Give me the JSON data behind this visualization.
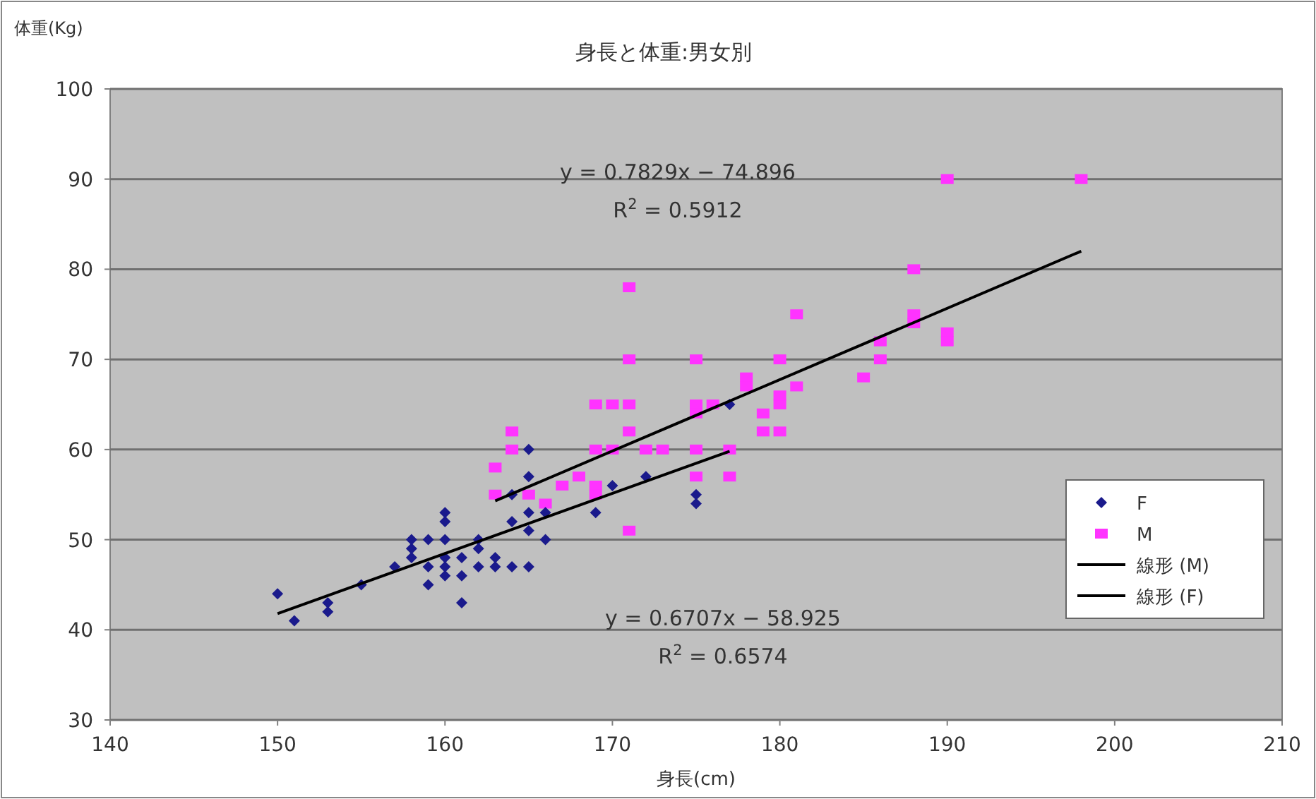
{
  "chart_data": {
    "type": "scatter",
    "title": "身長と体重:男女別",
    "xlabel": "身長(cm)",
    "ylabel": "体重(Kg)",
    "xlim": [
      140,
      210
    ],
    "xticks": [
      140,
      150,
      160,
      170,
      180,
      190,
      200,
      210
    ],
    "ylim": [
      30,
      100
    ],
    "yticks": [
      30,
      40,
      50,
      60,
      70,
      80,
      90,
      100
    ],
    "grid": "y",
    "legend": "right",
    "annotations": [
      "y = 0.7829x − 74.896",
      "R$^{2}$ = 0.5912",
      "y = 0.6707x − 58.925",
      "R$^{2}$ = 0.6574"
    ],
    "series": [
      {
        "name": "F",
        "color": "#1a1a8c",
        "marker": "diamond",
        "x": [
          150,
          151,
          153,
          153,
          155,
          157,
          158,
          158,
          158,
          159,
          159,
          159,
          160,
          160,
          160,
          160,
          160,
          160,
          161,
          161,
          161,
          162,
          162,
          162,
          163,
          163,
          164,
          164,
          164,
          165,
          165,
          165,
          165,
          165,
          166,
          166,
          169,
          170,
          172,
          175,
          175,
          177
        ],
        "values": [
          44,
          41,
          42,
          43,
          45,
          47,
          48,
          49,
          50,
          45,
          47,
          50,
          46,
          47,
          48,
          50,
          52,
          53,
          43,
          46,
          48,
          47,
          49,
          50,
          47,
          48,
          47,
          52,
          55,
          47,
          51,
          53,
          57,
          60,
          50,
          53,
          53,
          56,
          57,
          54,
          55,
          65
        ]
      },
      {
        "name": "M",
        "color": "#ff33ff",
        "marker": "square",
        "x": [
          163,
          163,
          164,
          164,
          165,
          166,
          167,
          168,
          169,
          169,
          169,
          169,
          170,
          170,
          171,
          171,
          171,
          171,
          171,
          172,
          173,
          175,
          175,
          175,
          175,
          175,
          176,
          177,
          177,
          178,
          178,
          179,
          179,
          180,
          180,
          180,
          180,
          181,
          181,
          185,
          186,
          186,
          188,
          188,
          188,
          190,
          190,
          190,
          198
        ],
        "values": [
          55,
          58,
          60,
          62,
          55,
          54,
          56,
          57,
          56,
          55,
          60,
          65,
          65,
          60,
          78,
          70,
          65,
          62,
          51,
          60,
          60,
          70,
          65,
          64,
          60,
          57,
          65,
          57,
          60,
          68,
          67,
          64,
          62,
          62,
          65,
          66,
          70,
          75,
          67,
          68,
          72,
          70,
          80,
          75,
          74,
          90,
          73,
          72,
          90
        ]
      },
      {
        "name": "線形 (M)",
        "type": "line",
        "color": "#000000",
        "marker": "none",
        "x": [
          163,
          198
        ],
        "values": [
          54.3,
          82
        ]
      },
      {
        "name": "線形 (F)",
        "type": "line",
        "color": "#000000",
        "marker": "none",
        "x": [
          150,
          177
        ],
        "values": [
          41.8,
          59.8
        ]
      }
    ]
  }
}
